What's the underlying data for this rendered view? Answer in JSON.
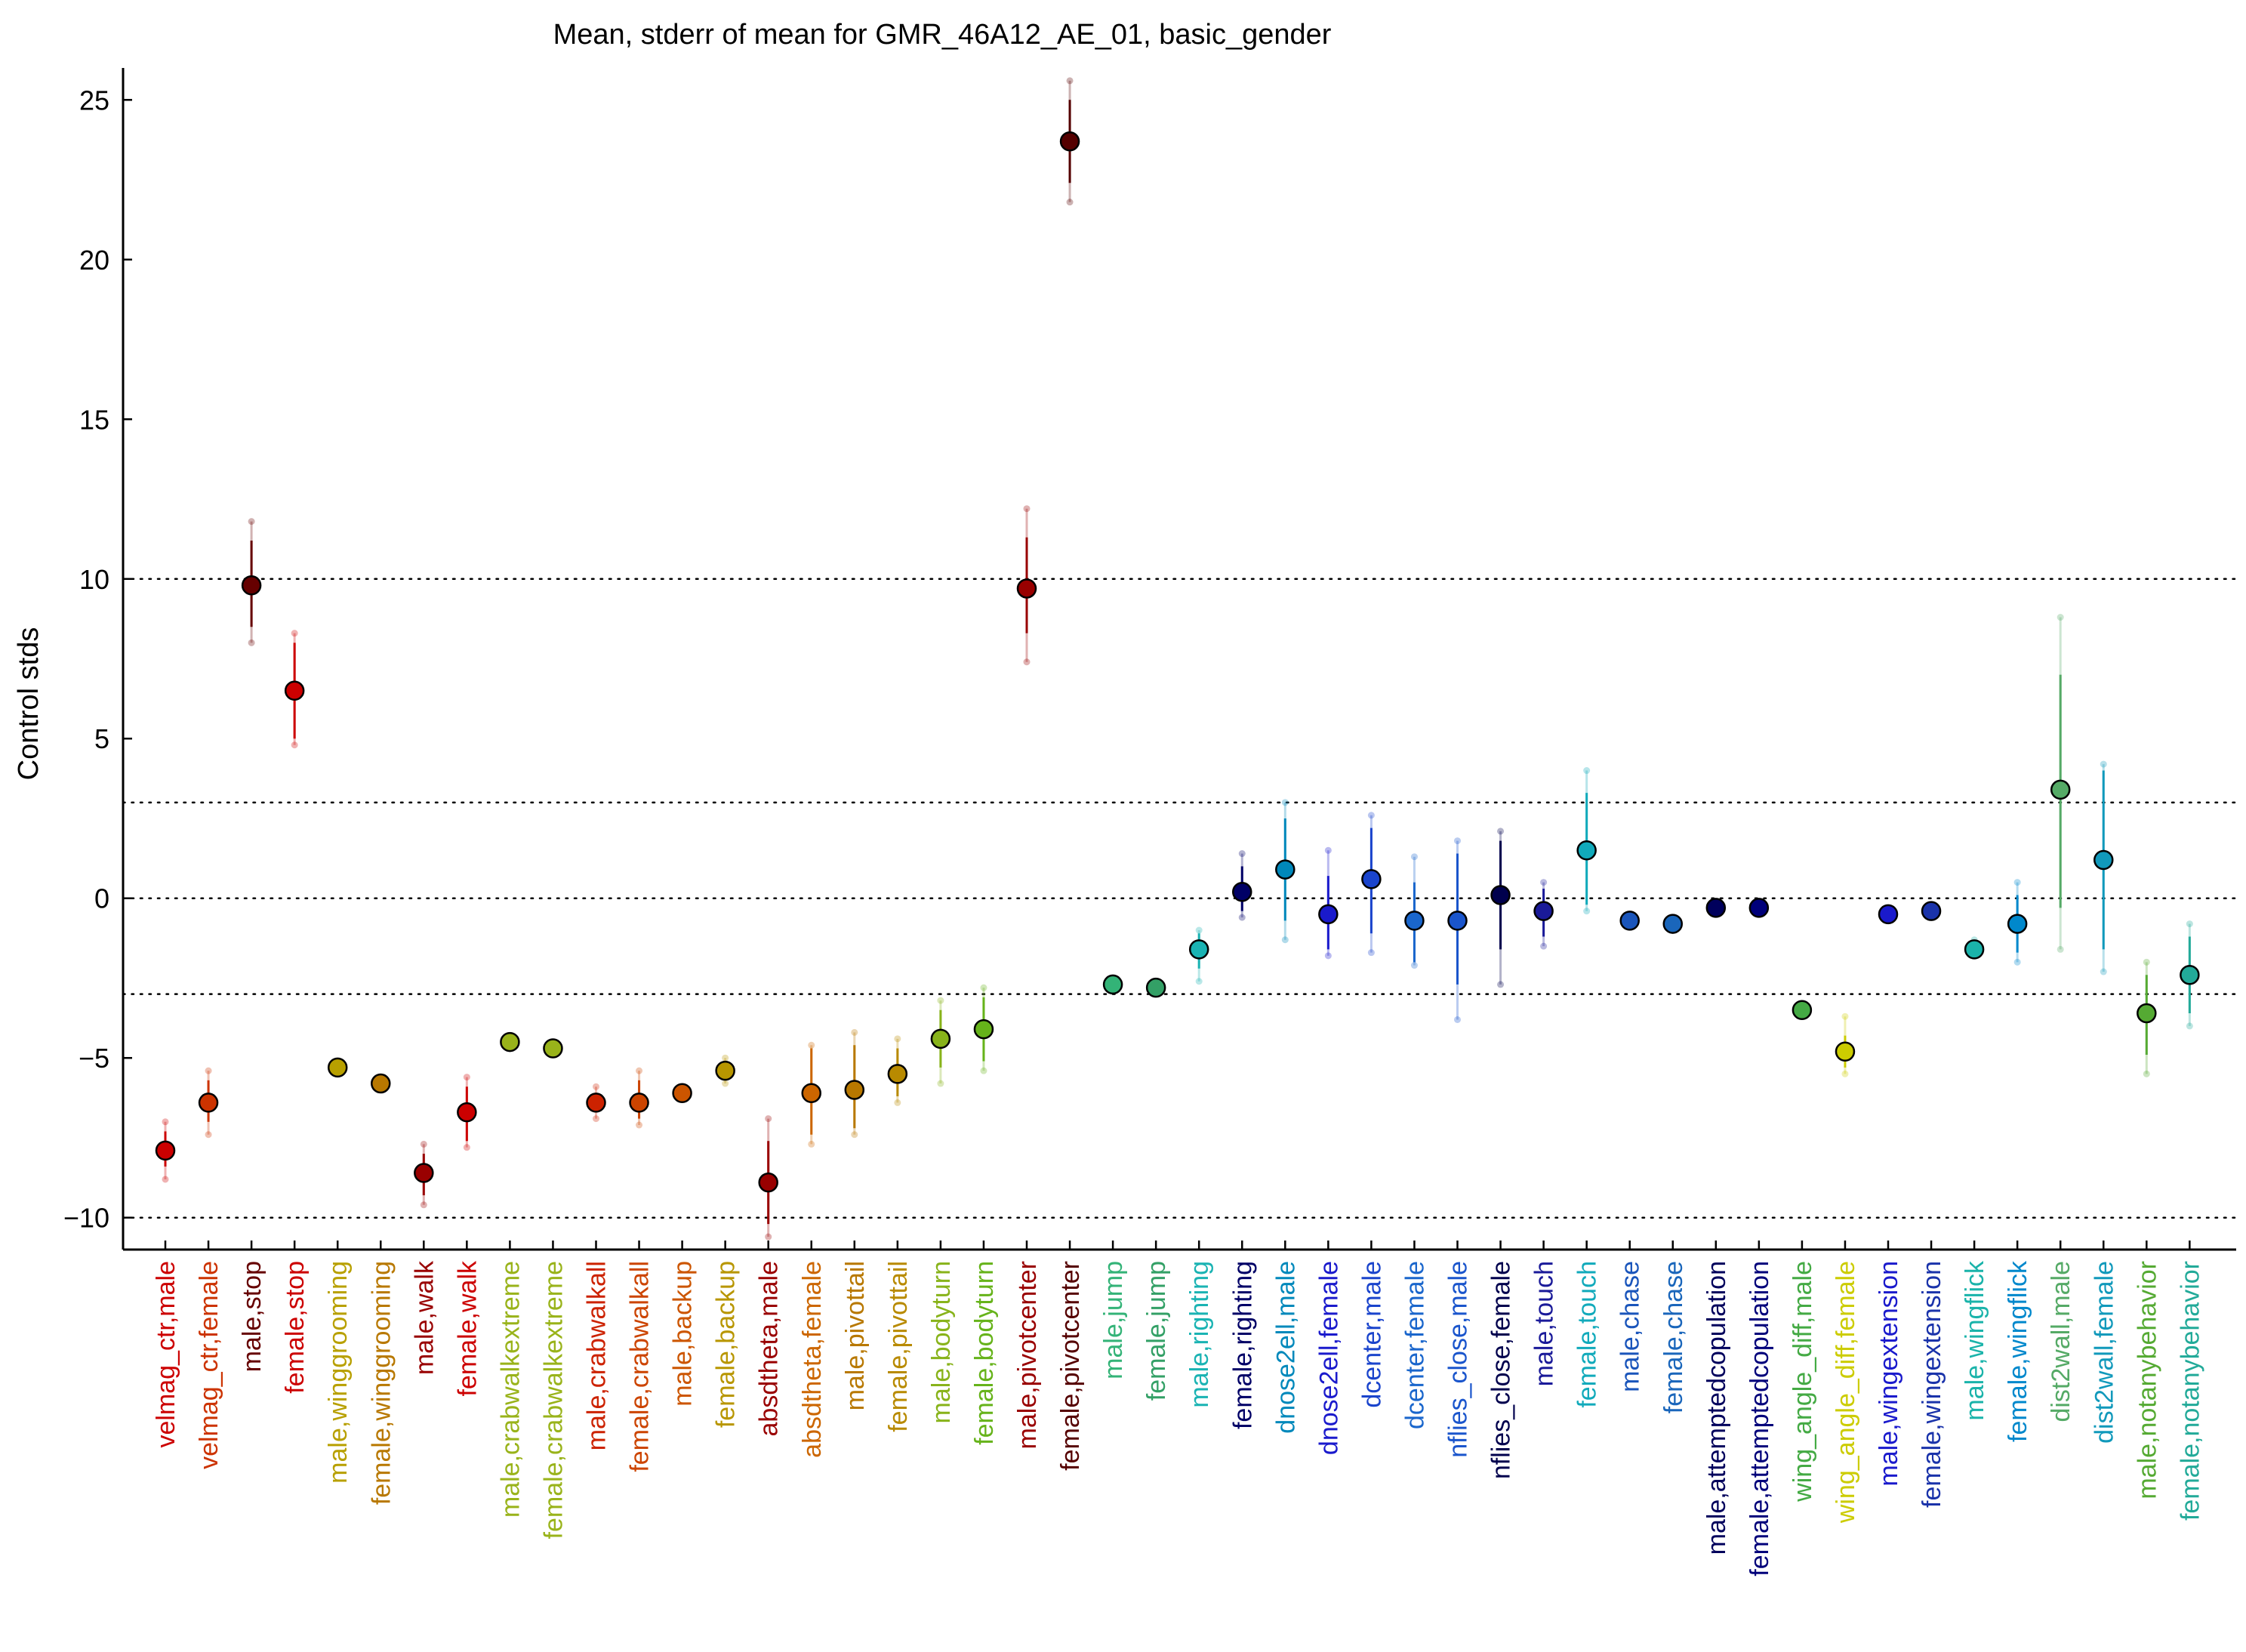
{
  "chart_data": {
    "type": "scatter",
    "title": "Mean, stderr of mean for GMR_46A12_AE_01, basic_gender",
    "xlabel": "",
    "ylabel": "Control stds",
    "ylim": [
      -11,
      26
    ],
    "yticks": [
      -10,
      -5,
      0,
      5,
      10,
      15,
      20,
      25
    ],
    "ytick_labels": [
      "−10",
      "−5",
      "0",
      "5",
      "10",
      "15",
      "20",
      "25"
    ],
    "reference_lines": [
      -10,
      -3,
      0,
      3,
      10
    ],
    "grid": false,
    "marker_edge_color": "#000000",
    "points": [
      {
        "label": "velmag_ctr,male",
        "mean": -7.9,
        "se_low": -8.4,
        "se_high": -7.3,
        "range_low": -8.8,
        "range_high": -7.0,
        "color": "#cc0000"
      },
      {
        "label": "velmag_ctr,female",
        "mean": -6.4,
        "se_low": -7.0,
        "se_high": -5.7,
        "range_low": -7.4,
        "range_high": -5.4,
        "color": "#cc3300"
      },
      {
        "label": "male,stop",
        "mean": 9.8,
        "se_low": 8.5,
        "se_high": 11.2,
        "range_low": 8.0,
        "range_high": 11.8,
        "color": "#660000"
      },
      {
        "label": "female,stop",
        "mean": 6.5,
        "se_low": 5.0,
        "se_high": 8.0,
        "range_low": 4.8,
        "range_high": 8.3,
        "color": "#cc0000"
      },
      {
        "label": "male,winggrooming",
        "mean": -5.3,
        "se_low": -5.4,
        "se_high": -5.2,
        "range_low": -5.4,
        "range_high": -5.2,
        "color": "#b8a000"
      },
      {
        "label": "female,winggrooming",
        "mean": -5.8,
        "se_low": -5.9,
        "se_high": -5.7,
        "range_low": -5.9,
        "range_high": -5.7,
        "color": "#b87800"
      },
      {
        "label": "male,walk",
        "mean": -8.6,
        "se_low": -9.3,
        "se_high": -8.0,
        "range_low": -9.6,
        "range_high": -7.7,
        "color": "#990000"
      },
      {
        "label": "female,walk",
        "mean": -6.7,
        "se_low": -7.6,
        "se_high": -5.9,
        "range_low": -7.8,
        "range_high": -5.6,
        "color": "#cc0000"
      },
      {
        "label": "male,crabwalkextreme",
        "mean": -4.5,
        "se_low": -4.6,
        "se_high": -4.4,
        "range_low": -4.6,
        "range_high": -4.4,
        "color": "#99b31a"
      },
      {
        "label": "female,crabwalkextreme",
        "mean": -4.7,
        "se_low": -4.8,
        "se_high": -4.6,
        "range_low": -4.8,
        "range_high": -4.6,
        "color": "#99b31a"
      },
      {
        "label": "male,crabwalkall",
        "mean": -6.4,
        "se_low": -6.7,
        "se_high": -6.1,
        "range_low": -6.9,
        "range_high": -5.9,
        "color": "#cc2200"
      },
      {
        "label": "female,crabwalkall",
        "mean": -6.4,
        "se_low": -6.9,
        "se_high": -5.7,
        "range_low": -7.1,
        "range_high": -5.4,
        "color": "#cc4400"
      },
      {
        "label": "male,backup",
        "mean": -6.1,
        "se_low": -6.2,
        "se_high": -6.0,
        "range_low": -6.2,
        "range_high": -6.0,
        "color": "#cc5500"
      },
      {
        "label": "female,backup",
        "mean": -5.4,
        "se_low": -5.6,
        "se_high": -5.2,
        "range_low": -5.8,
        "range_high": -5.0,
        "color": "#b89600"
      },
      {
        "label": "absdtheta,male",
        "mean": -8.9,
        "se_low": -10.2,
        "se_high": -7.6,
        "range_low": -10.6,
        "range_high": -6.9,
        "color": "#990000"
      },
      {
        "label": "absdtheta,female",
        "mean": -6.1,
        "se_low": -7.4,
        "se_high": -4.7,
        "range_low": -7.7,
        "range_high": -4.6,
        "color": "#cc6600"
      },
      {
        "label": "male,pivottail",
        "mean": -6.0,
        "se_low": -7.2,
        "se_high": -4.6,
        "range_low": -7.4,
        "range_high": -4.2,
        "color": "#b87800"
      },
      {
        "label": "female,pivottail",
        "mean": -5.5,
        "se_low": -6.2,
        "se_high": -4.7,
        "range_low": -6.4,
        "range_high": -4.4,
        "color": "#b88a00"
      },
      {
        "label": "male,bodyturn",
        "mean": -4.4,
        "se_low": -5.3,
        "se_high": -3.5,
        "range_low": -5.8,
        "range_high": -3.2,
        "color": "#88b31a"
      },
      {
        "label": "female,bodyturn",
        "mean": -4.1,
        "se_low": -5.1,
        "se_high": -3.1,
        "range_low": -5.4,
        "range_high": -2.8,
        "color": "#66b31a"
      },
      {
        "label": "male,pivotcenter",
        "mean": 9.7,
        "se_low": 8.3,
        "se_high": 11.3,
        "range_low": 7.4,
        "range_high": 12.2,
        "color": "#990000"
      },
      {
        "label": "female,pivotcenter",
        "mean": 23.7,
        "se_low": 22.4,
        "se_high": 25.0,
        "range_low": 21.8,
        "range_high": 25.6,
        "color": "#550000"
      },
      {
        "label": "male,jump",
        "mean": -2.7,
        "se_low": -2.8,
        "se_high": -2.6,
        "range_low": -2.8,
        "range_high": -2.6,
        "color": "#33b377"
      },
      {
        "label": "female,jump",
        "mean": -2.8,
        "se_low": -2.9,
        "se_high": -2.7,
        "range_low": -2.9,
        "range_high": -2.7,
        "color": "#33a066"
      },
      {
        "label": "male,righting",
        "mean": -1.6,
        "se_low": -2.2,
        "se_high": -1.1,
        "range_low": -2.6,
        "range_high": -1.0,
        "color": "#1ab3b3"
      },
      {
        "label": "female,righting",
        "mean": 0.2,
        "se_low": -0.4,
        "se_high": 1.0,
        "range_low": -0.6,
        "range_high": 1.4,
        "color": "#000066"
      },
      {
        "label": "dnose2ell,male",
        "mean": 0.9,
        "se_low": -0.7,
        "se_high": 2.5,
        "range_low": -1.3,
        "range_high": 3.0,
        "color": "#0088bb"
      },
      {
        "label": "dnose2ell,female",
        "mean": -0.5,
        "se_low": -1.6,
        "se_high": 0.7,
        "range_low": -1.8,
        "range_high": 1.5,
        "color": "#1a1acc"
      },
      {
        "label": "dcenter,male",
        "mean": 0.6,
        "se_low": -1.1,
        "se_high": 2.2,
        "range_low": -1.7,
        "range_high": 2.6,
        "color": "#1a44cc"
      },
      {
        "label": "dcenter,female",
        "mean": -0.7,
        "se_low": -2.0,
        "se_high": 0.5,
        "range_low": -2.1,
        "range_high": 1.3,
        "color": "#1a66cc"
      },
      {
        "label": "nflies_close,male",
        "mean": -0.7,
        "se_low": -2.7,
        "se_high": 1.4,
        "range_low": -3.8,
        "range_high": 1.8,
        "color": "#1a55cc"
      },
      {
        "label": "nflies_close,female",
        "mean": 0.1,
        "se_low": -1.6,
        "se_high": 1.8,
        "range_low": -2.7,
        "range_high": 2.1,
        "color": "#00004d"
      },
      {
        "label": "male,touch",
        "mean": -0.4,
        "se_low": -1.2,
        "se_high": 0.3,
        "range_low": -1.5,
        "range_high": 0.5,
        "color": "#1a1a99"
      },
      {
        "label": "female,touch",
        "mean": 1.5,
        "se_low": -0.2,
        "se_high": 3.3,
        "range_low": -0.4,
        "range_high": 4.0,
        "color": "#11aabb"
      },
      {
        "label": "male,chase",
        "mean": -0.7,
        "se_low": -0.8,
        "se_high": -0.6,
        "range_low": -0.8,
        "range_high": -0.6,
        "color": "#1a55bb"
      },
      {
        "label": "female,chase",
        "mean": -0.8,
        "se_low": -0.9,
        "se_high": -0.7,
        "range_low": -0.9,
        "range_high": -0.7,
        "color": "#1a66bb"
      },
      {
        "label": "male,attemptedcopulation",
        "mean": -0.3,
        "se_low": -0.4,
        "se_high": -0.2,
        "range_low": -0.4,
        "range_high": -0.2,
        "color": "#00005c"
      },
      {
        "label": "female,attemptedcopulation",
        "mean": -0.3,
        "se_low": -0.4,
        "se_high": -0.2,
        "range_low": -0.4,
        "range_high": -0.2,
        "color": "#00007a"
      },
      {
        "label": "wing_angle_diff,male",
        "mean": -3.5,
        "se_low": -3.6,
        "se_high": -3.4,
        "range_low": -3.6,
        "range_high": -3.4,
        "color": "#44aa44"
      },
      {
        "label": "wing_angle_diff,female",
        "mean": -4.8,
        "se_low": -5.3,
        "se_high": -4.3,
        "range_low": -5.5,
        "range_high": -3.7,
        "color": "#cccc00"
      },
      {
        "label": "male,wingextension",
        "mean": -0.5,
        "se_low": -0.6,
        "se_high": -0.4,
        "range_low": -0.6,
        "range_high": -0.4,
        "color": "#1a1acc"
      },
      {
        "label": "female,wingextension",
        "mean": -0.4,
        "se_low": -0.5,
        "se_high": -0.3,
        "range_low": -0.5,
        "range_high": -0.3,
        "color": "#1a33aa"
      },
      {
        "label": "male,wingflick",
        "mean": -1.6,
        "se_low": -1.7,
        "se_high": -1.5,
        "range_low": -1.7,
        "range_high": -1.3,
        "color": "#1ab3aa"
      },
      {
        "label": "female,wingflick",
        "mean": -0.8,
        "se_low": -1.7,
        "se_high": 0.1,
        "range_low": -2.0,
        "range_high": 0.5,
        "color": "#0088cc"
      },
      {
        "label": "dist2wall,male",
        "mean": 3.4,
        "se_low": -0.3,
        "se_high": 7.0,
        "range_low": -1.6,
        "range_high": 8.8,
        "color": "#55aa66"
      },
      {
        "label": "dist2wall,female",
        "mean": 1.2,
        "se_low": -1.6,
        "se_high": 4.0,
        "range_low": -2.3,
        "range_high": 4.2,
        "color": "#1199bb"
      },
      {
        "label": "male,notanybehavior",
        "mean": -3.6,
        "se_low": -4.9,
        "se_high": -2.4,
        "range_low": -5.5,
        "range_high": -2.0,
        "color": "#55aa33"
      },
      {
        "label": "female,notanybehavior",
        "mean": -2.4,
        "se_low": -3.6,
        "se_high": -1.2,
        "range_low": -4.0,
        "range_high": -0.8,
        "color": "#22aa99"
      }
    ]
  }
}
